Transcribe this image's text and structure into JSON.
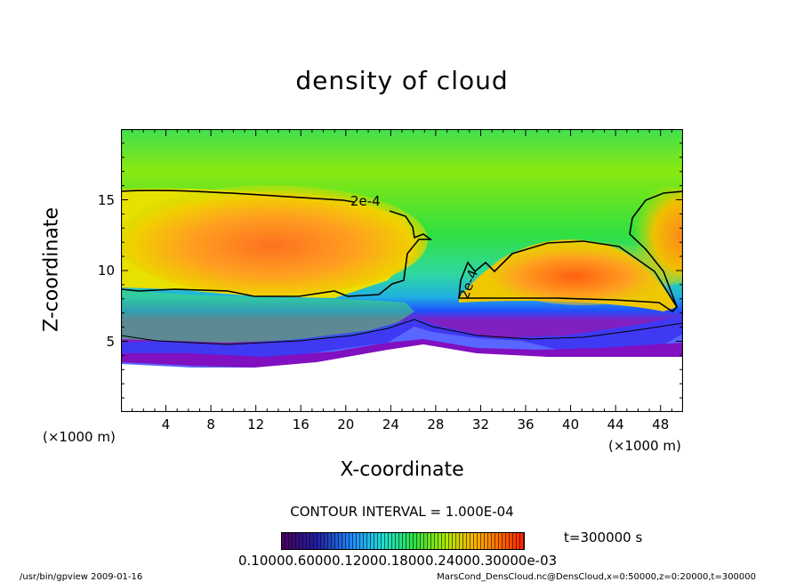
{
  "chart_data": {
    "type": "heatmap",
    "title": "density of cloud",
    "xlabel": "X-coordinate",
    "ylabel": "Z-coordinate",
    "x_unit": "(×1000 m)",
    "z_unit": "(×1000 m)",
    "xlim": [
      0,
      50
    ],
    "ylim": [
      0,
      20
    ],
    "xticks": [
      "4",
      "8",
      "12",
      "16",
      "20",
      "24",
      "28",
      "32",
      "36",
      "40",
      "44",
      "48"
    ],
    "yticks": [
      "5",
      "10",
      "15"
    ],
    "contour_interval": "CONTOUR INTERVAL = 1.000E-04",
    "contour_labels": [
      "2e-4",
      "2e-4"
    ],
    "colorbar_label": "0.10000.60000.12000.18000.24000.30000e-03",
    "colorbar_range": [
      0.0,
      0.0003
    ],
    "time": "t=300000 s",
    "colors": {
      "low": "#5a0080",
      "mid_low": "#2060ff",
      "mid": "#20e020",
      "mid_high": "#e8e000",
      "high": "#ff3000"
    }
  },
  "footer": {
    "left": "/usr/bin/gpview   2009-01-16",
    "right": "MarsCond_DensCloud.nc@DensCloud,x=0:50000,z=0:20000,t=300000"
  }
}
